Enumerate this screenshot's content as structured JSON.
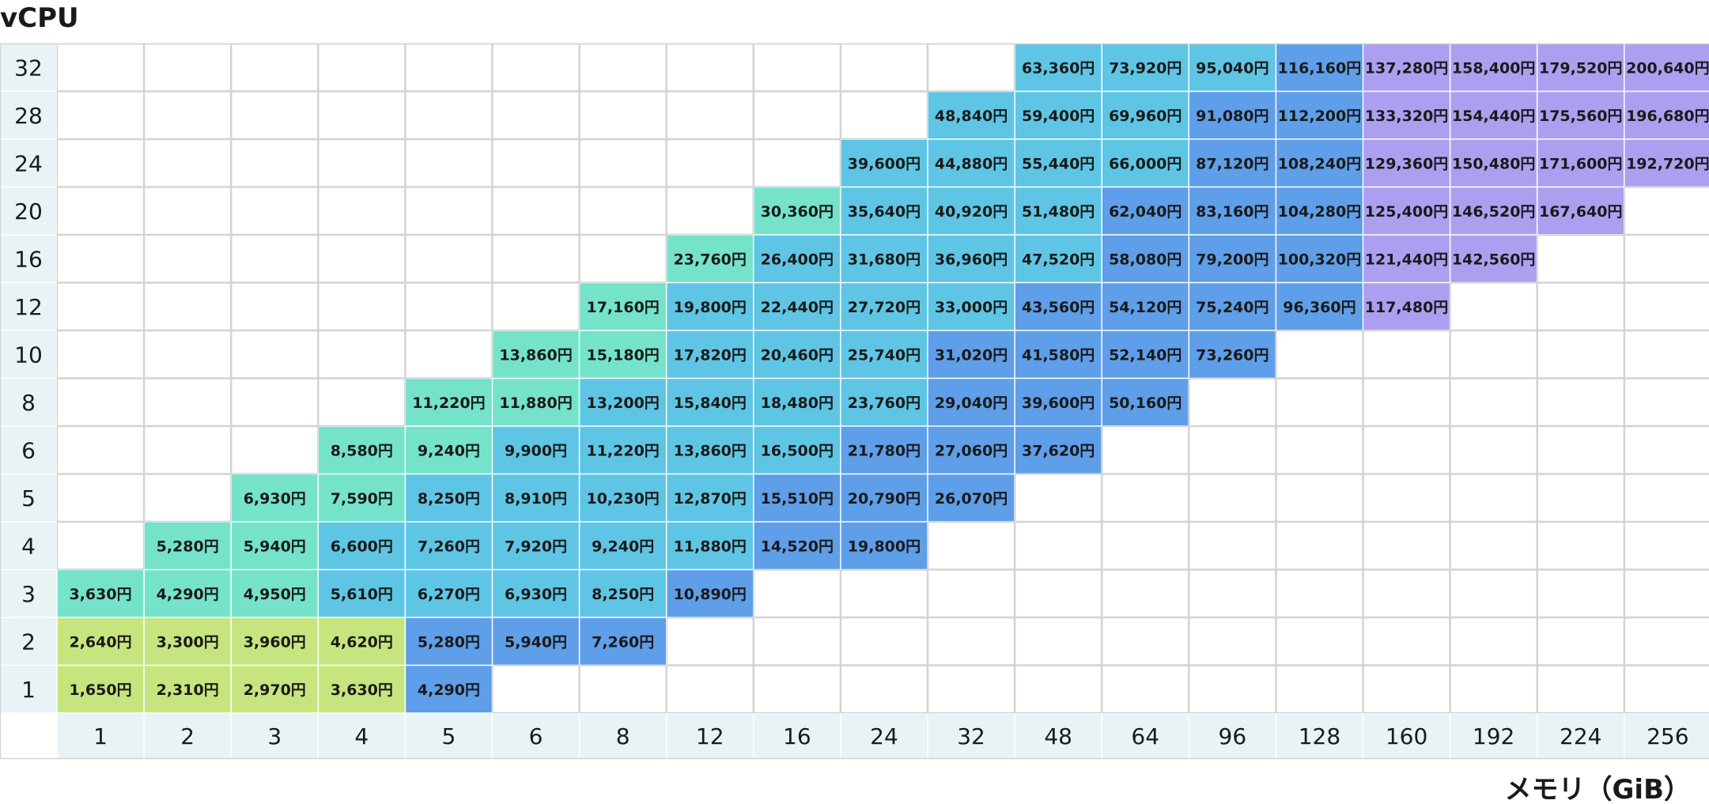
{
  "chart_data": {
    "type": "table",
    "ylabel": "vCPU",
    "xlabel": "メモリ（GiB）",
    "x_categories": [
      "1",
      "2",
      "3",
      "4",
      "5",
      "6",
      "8",
      "12",
      "16",
      "24",
      "32",
      "48",
      "64",
      "96",
      "128",
      "160",
      "192",
      "224",
      "256"
    ],
    "y_categories": [
      "32",
      "28",
      "24",
      "20",
      "16",
      "12",
      "10",
      "8",
      "6",
      "5",
      "4",
      "3",
      "2",
      "1"
    ],
    "unit_suffix": "円",
    "cells": [
      {
        "vcpu": "1",
        "mem": "1",
        "value": 1650,
        "label": "1,650円",
        "tier": "green"
      },
      {
        "vcpu": "1",
        "mem": "2",
        "value": 2310,
        "label": "2,310円",
        "tier": "green"
      },
      {
        "vcpu": "1",
        "mem": "3",
        "value": 2970,
        "label": "2,970円",
        "tier": "green"
      },
      {
        "vcpu": "1",
        "mem": "4",
        "value": 3630,
        "label": "3,630円",
        "tier": "green"
      },
      {
        "vcpu": "1",
        "mem": "5",
        "value": 4290,
        "label": "4,290円",
        "tier": "blue"
      },
      {
        "vcpu": "2",
        "mem": "1",
        "value": 2640,
        "label": "2,640円",
        "tier": "green"
      },
      {
        "vcpu": "2",
        "mem": "2",
        "value": 3300,
        "label": "3,300円",
        "tier": "green"
      },
      {
        "vcpu": "2",
        "mem": "3",
        "value": 3960,
        "label": "3,960円",
        "tier": "green"
      },
      {
        "vcpu": "2",
        "mem": "4",
        "value": 4620,
        "label": "4,620円",
        "tier": "green"
      },
      {
        "vcpu": "2",
        "mem": "5",
        "value": 5280,
        "label": "5,280円",
        "tier": "blue"
      },
      {
        "vcpu": "2",
        "mem": "6",
        "value": 5940,
        "label": "5,940円",
        "tier": "blue"
      },
      {
        "vcpu": "2",
        "mem": "8",
        "value": 7260,
        "label": "7,260円",
        "tier": "blue"
      },
      {
        "vcpu": "3",
        "mem": "1",
        "value": 3630,
        "label": "3,630円",
        "tier": "teal"
      },
      {
        "vcpu": "3",
        "mem": "2",
        "value": 4290,
        "label": "4,290円",
        "tier": "teal"
      },
      {
        "vcpu": "3",
        "mem": "3",
        "value": 4950,
        "label": "4,950円",
        "tier": "teal"
      },
      {
        "vcpu": "3",
        "mem": "4",
        "value": 5610,
        "label": "5,610円",
        "tier": "cyan"
      },
      {
        "vcpu": "3",
        "mem": "5",
        "value": 6270,
        "label": "6,270円",
        "tier": "cyan"
      },
      {
        "vcpu": "3",
        "mem": "6",
        "value": 6930,
        "label": "6,930円",
        "tier": "cyan"
      },
      {
        "vcpu": "3",
        "mem": "8",
        "value": 8250,
        "label": "8,250円",
        "tier": "cyan"
      },
      {
        "vcpu": "3",
        "mem": "12",
        "value": 10890,
        "label": "10,890円",
        "tier": "blue"
      },
      {
        "vcpu": "4",
        "mem": "2",
        "value": 5280,
        "label": "5,280円",
        "tier": "teal"
      },
      {
        "vcpu": "4",
        "mem": "3",
        "value": 5940,
        "label": "5,940円",
        "tier": "teal"
      },
      {
        "vcpu": "4",
        "mem": "4",
        "value": 6600,
        "label": "6,600円",
        "tier": "cyan"
      },
      {
        "vcpu": "4",
        "mem": "5",
        "value": 7260,
        "label": "7,260円",
        "tier": "cyan"
      },
      {
        "vcpu": "4",
        "mem": "6",
        "value": 7920,
        "label": "7,920円",
        "tier": "cyan"
      },
      {
        "vcpu": "4",
        "mem": "8",
        "value": 9240,
        "label": "9,240円",
        "tier": "cyan"
      },
      {
        "vcpu": "4",
        "mem": "12",
        "value": 11880,
        "label": "11,880円",
        "tier": "cyan"
      },
      {
        "vcpu": "4",
        "mem": "16",
        "value": 14520,
        "label": "14,520円",
        "tier": "blue"
      },
      {
        "vcpu": "4",
        "mem": "24",
        "value": 19800,
        "label": "19,800円",
        "tier": "blue"
      },
      {
        "vcpu": "5",
        "mem": "3",
        "value": 6930,
        "label": "6,930円",
        "tier": "teal"
      },
      {
        "vcpu": "5",
        "mem": "4",
        "value": 7590,
        "label": "7,590円",
        "tier": "teal"
      },
      {
        "vcpu": "5",
        "mem": "5",
        "value": 8250,
        "label": "8,250円",
        "tier": "cyan"
      },
      {
        "vcpu": "5",
        "mem": "6",
        "value": 8910,
        "label": "8,910円",
        "tier": "cyan"
      },
      {
        "vcpu": "5",
        "mem": "8",
        "value": 10230,
        "label": "10,230円",
        "tier": "cyan"
      },
      {
        "vcpu": "5",
        "mem": "12",
        "value": 12870,
        "label": "12,870円",
        "tier": "cyan"
      },
      {
        "vcpu": "5",
        "mem": "16",
        "value": 15510,
        "label": "15,510円",
        "tier": "blue"
      },
      {
        "vcpu": "5",
        "mem": "24",
        "value": 20790,
        "label": "20,790円",
        "tier": "blue"
      },
      {
        "vcpu": "5",
        "mem": "32",
        "value": 26070,
        "label": "26,070円",
        "tier": "blue"
      },
      {
        "vcpu": "6",
        "mem": "4",
        "value": 8580,
        "label": "8,580円",
        "tier": "teal"
      },
      {
        "vcpu": "6",
        "mem": "5",
        "value": 9240,
        "label": "9,240円",
        "tier": "teal"
      },
      {
        "vcpu": "6",
        "mem": "6",
        "value": 9900,
        "label": "9,900円",
        "tier": "cyan"
      },
      {
        "vcpu": "6",
        "mem": "8",
        "value": 11220,
        "label": "11,220円",
        "tier": "cyan"
      },
      {
        "vcpu": "6",
        "mem": "12",
        "value": 13860,
        "label": "13,860円",
        "tier": "cyan"
      },
      {
        "vcpu": "6",
        "mem": "16",
        "value": 16500,
        "label": "16,500円",
        "tier": "cyan"
      },
      {
        "vcpu": "6",
        "mem": "24",
        "value": 21780,
        "label": "21,780円",
        "tier": "blue"
      },
      {
        "vcpu": "6",
        "mem": "32",
        "value": 27060,
        "label": "27,060円",
        "tier": "blue"
      },
      {
        "vcpu": "6",
        "mem": "48",
        "value": 37620,
        "label": "37,620円",
        "tier": "blue"
      },
      {
        "vcpu": "8",
        "mem": "5",
        "value": 11220,
        "label": "11,220円",
        "tier": "teal"
      },
      {
        "vcpu": "8",
        "mem": "6",
        "value": 11880,
        "label": "11,880円",
        "tier": "teal"
      },
      {
        "vcpu": "8",
        "mem": "8",
        "value": 13200,
        "label": "13,200円",
        "tier": "cyan"
      },
      {
        "vcpu": "8",
        "mem": "12",
        "value": 15840,
        "label": "15,840円",
        "tier": "cyan"
      },
      {
        "vcpu": "8",
        "mem": "16",
        "value": 18480,
        "label": "18,480円",
        "tier": "cyan"
      },
      {
        "vcpu": "8",
        "mem": "24",
        "value": 23760,
        "label": "23,760円",
        "tier": "cyan"
      },
      {
        "vcpu": "8",
        "mem": "32",
        "value": 29040,
        "label": "29,040円",
        "tier": "blue"
      },
      {
        "vcpu": "8",
        "mem": "48",
        "value": 39600,
        "label": "39,600円",
        "tier": "blue"
      },
      {
        "vcpu": "8",
        "mem": "64",
        "value": 50160,
        "label": "50,160円",
        "tier": "blue"
      },
      {
        "vcpu": "10",
        "mem": "6",
        "value": 13860,
        "label": "13,860円",
        "tier": "teal"
      },
      {
        "vcpu": "10",
        "mem": "8",
        "value": 15180,
        "label": "15,180円",
        "tier": "teal"
      },
      {
        "vcpu": "10",
        "mem": "12",
        "value": 17820,
        "label": "17,820円",
        "tier": "cyan"
      },
      {
        "vcpu": "10",
        "mem": "16",
        "value": 20460,
        "label": "20,460円",
        "tier": "cyan"
      },
      {
        "vcpu": "10",
        "mem": "24",
        "value": 25740,
        "label": "25,740円",
        "tier": "cyan"
      },
      {
        "vcpu": "10",
        "mem": "32",
        "value": 31020,
        "label": "31,020円",
        "tier": "blue"
      },
      {
        "vcpu": "10",
        "mem": "48",
        "value": 41580,
        "label": "41,580円",
        "tier": "blue"
      },
      {
        "vcpu": "10",
        "mem": "64",
        "value": 52140,
        "label": "52,140円",
        "tier": "blue"
      },
      {
        "vcpu": "10",
        "mem": "96",
        "value": 73260,
        "label": "73,260円",
        "tier": "blue"
      },
      {
        "vcpu": "12",
        "mem": "8",
        "value": 17160,
        "label": "17,160円",
        "tier": "teal"
      },
      {
        "vcpu": "12",
        "mem": "12",
        "value": 19800,
        "label": "19,800円",
        "tier": "cyan"
      },
      {
        "vcpu": "12",
        "mem": "16",
        "value": 22440,
        "label": "22,440円",
        "tier": "cyan"
      },
      {
        "vcpu": "12",
        "mem": "24",
        "value": 27720,
        "label": "27,720円",
        "tier": "cyan"
      },
      {
        "vcpu": "12",
        "mem": "32",
        "value": 33000,
        "label": "33,000円",
        "tier": "cyan"
      },
      {
        "vcpu": "12",
        "mem": "48",
        "value": 43560,
        "label": "43,560円",
        "tier": "blue"
      },
      {
        "vcpu": "12",
        "mem": "64",
        "value": 54120,
        "label": "54,120円",
        "tier": "blue"
      },
      {
        "vcpu": "12",
        "mem": "96",
        "value": 75240,
        "label": "75,240円",
        "tier": "blue"
      },
      {
        "vcpu": "12",
        "mem": "128",
        "value": 96360,
        "label": "96,360円",
        "tier": "blue"
      },
      {
        "vcpu": "12",
        "mem": "160",
        "value": 117480,
        "label": "117,480円",
        "tier": "purple"
      },
      {
        "vcpu": "16",
        "mem": "12",
        "value": 23760,
        "label": "23,760円",
        "tier": "teal"
      },
      {
        "vcpu": "16",
        "mem": "16",
        "value": 26400,
        "label": "26,400円",
        "tier": "cyan"
      },
      {
        "vcpu": "16",
        "mem": "24",
        "value": 31680,
        "label": "31,680円",
        "tier": "cyan"
      },
      {
        "vcpu": "16",
        "mem": "32",
        "value": 36960,
        "label": "36,960円",
        "tier": "cyan"
      },
      {
        "vcpu": "16",
        "mem": "48",
        "value": 47520,
        "label": "47,520円",
        "tier": "cyan"
      },
      {
        "vcpu": "16",
        "mem": "64",
        "value": 58080,
        "label": "58,080円",
        "tier": "blue"
      },
      {
        "vcpu": "16",
        "mem": "96",
        "value": 79200,
        "label": "79,200円",
        "tier": "blue"
      },
      {
        "vcpu": "16",
        "mem": "128",
        "value": 100320,
        "label": "100,320円",
        "tier": "blue"
      },
      {
        "vcpu": "16",
        "mem": "160",
        "value": 121440,
        "label": "121,440円",
        "tier": "purple"
      },
      {
        "vcpu": "16",
        "mem": "192",
        "value": 142560,
        "label": "142,560円",
        "tier": "purple"
      },
      {
        "vcpu": "20",
        "mem": "16",
        "value": 30360,
        "label": "30,360円",
        "tier": "teal"
      },
      {
        "vcpu": "20",
        "mem": "24",
        "value": 35640,
        "label": "35,640円",
        "tier": "cyan"
      },
      {
        "vcpu": "20",
        "mem": "32",
        "value": 40920,
        "label": "40,920円",
        "tier": "cyan"
      },
      {
        "vcpu": "20",
        "mem": "48",
        "value": 51480,
        "label": "51,480円",
        "tier": "cyan"
      },
      {
        "vcpu": "20",
        "mem": "64",
        "value": 62040,
        "label": "62,040円",
        "tier": "blue"
      },
      {
        "vcpu": "20",
        "mem": "96",
        "value": 83160,
        "label": "83,160円",
        "tier": "blue"
      },
      {
        "vcpu": "20",
        "mem": "128",
        "value": 104280,
        "label": "104,280円",
        "tier": "blue"
      },
      {
        "vcpu": "20",
        "mem": "160",
        "value": 125400,
        "label": "125,400円",
        "tier": "purple"
      },
      {
        "vcpu": "20",
        "mem": "192",
        "value": 146520,
        "label": "146,520円",
        "tier": "purple"
      },
      {
        "vcpu": "20",
        "mem": "224",
        "value": 167640,
        "label": "167,640円",
        "tier": "purple"
      },
      {
        "vcpu": "24",
        "mem": "24",
        "value": 39600,
        "label": "39,600円",
        "tier": "cyan"
      },
      {
        "vcpu": "24",
        "mem": "32",
        "value": 44880,
        "label": "44,880円",
        "tier": "cyan"
      },
      {
        "vcpu": "24",
        "mem": "48",
        "value": 55440,
        "label": "55,440円",
        "tier": "cyan"
      },
      {
        "vcpu": "24",
        "mem": "64",
        "value": 66000,
        "label": "66,000円",
        "tier": "cyan"
      },
      {
        "vcpu": "24",
        "mem": "96",
        "value": 87120,
        "label": "87,120円",
        "tier": "blue"
      },
      {
        "vcpu": "24",
        "mem": "128",
        "value": 108240,
        "label": "108,240円",
        "tier": "blue"
      },
      {
        "vcpu": "24",
        "mem": "160",
        "value": 129360,
        "label": "129,360円",
        "tier": "purple"
      },
      {
        "vcpu": "24",
        "mem": "192",
        "value": 150480,
        "label": "150,480円",
        "tier": "purple"
      },
      {
        "vcpu": "24",
        "mem": "224",
        "value": 171600,
        "label": "171,600円",
        "tier": "purple"
      },
      {
        "vcpu": "24",
        "mem": "256",
        "value": 192720,
        "label": "192,720円",
        "tier": "purple"
      },
      {
        "vcpu": "28",
        "mem": "32",
        "value": 48840,
        "label": "48,840円",
        "tier": "cyan"
      },
      {
        "vcpu": "28",
        "mem": "48",
        "value": 59400,
        "label": "59,400円",
        "tier": "cyan"
      },
      {
        "vcpu": "28",
        "mem": "64",
        "value": 69960,
        "label": "69,960円",
        "tier": "cyan"
      },
      {
        "vcpu": "28",
        "mem": "96",
        "value": 91080,
        "label": "91,080円",
        "tier": "blue"
      },
      {
        "vcpu": "28",
        "mem": "128",
        "value": 112200,
        "label": "112,200円",
        "tier": "blue"
      },
      {
        "vcpu": "28",
        "mem": "160",
        "value": 133320,
        "label": "133,320円",
        "tier": "purple"
      },
      {
        "vcpu": "28",
        "mem": "192",
        "value": 154440,
        "label": "154,440円",
        "tier": "purple"
      },
      {
        "vcpu": "28",
        "mem": "224",
        "value": 175560,
        "label": "175,560円",
        "tier": "purple"
      },
      {
        "vcpu": "28",
        "mem": "256",
        "value": 196680,
        "label": "196,680円",
        "tier": "purple"
      },
      {
        "vcpu": "32",
        "mem": "48",
        "value": 63360,
        "label": "63,360円",
        "tier": "cyan"
      },
      {
        "vcpu": "32",
        "mem": "64",
        "value": 73920,
        "label": "73,920円",
        "tier": "cyan"
      },
      {
        "vcpu": "32",
        "mem": "96",
        "value": 95040,
        "label": "95,040円",
        "tier": "cyan"
      },
      {
        "vcpu": "32",
        "mem": "128",
        "value": 116160,
        "label": "116,160円",
        "tier": "blue"
      },
      {
        "vcpu": "32",
        "mem": "160",
        "value": 137280,
        "label": "137,280円",
        "tier": "purple"
      },
      {
        "vcpu": "32",
        "mem": "192",
        "value": 158400,
        "label": "158,400円",
        "tier": "purple"
      },
      {
        "vcpu": "32",
        "mem": "224",
        "value": 179520,
        "label": "179,520円",
        "tier": "purple"
      },
      {
        "vcpu": "32",
        "mem": "256",
        "value": 200640,
        "label": "200,640円",
        "tier": "purple"
      }
    ],
    "colors": {
      "green": "#c7e57f",
      "teal": "#74e3c9",
      "cyan": "#5fc5e4",
      "blue": "#5f9ee8",
      "purple": "#ad9ff0",
      "axis_band": "#e8f3f6",
      "grid": "#d3d3d3"
    },
    "grid": true
  }
}
